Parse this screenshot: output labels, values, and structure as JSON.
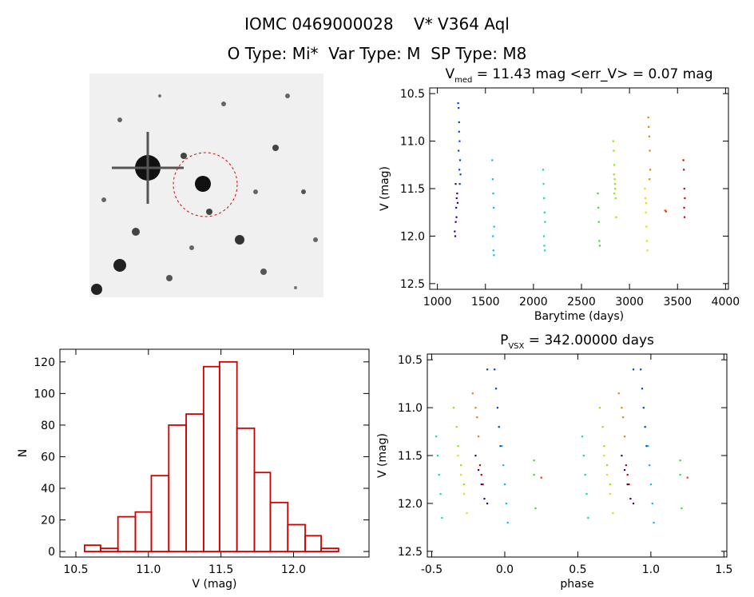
{
  "header": {
    "title": "IOMC 0469000028    V* V364 Aql",
    "subtitle": "O Type: Mi*  Var Type: M  SP Type: M8"
  },
  "chart_data": [
    {
      "type": "scatter",
      "title": "V",
      "title_sub": "med",
      "title_rest": " = 11.43 mag <err_V> = 0.07 mag",
      "xlabel": "Barytime (days)",
      "ylabel": "V (mag)",
      "xlim": [
        920,
        4030
      ],
      "ylim": [
        12.56,
        10.44
      ],
      "xticks": [
        1000,
        1500,
        2000,
        2500,
        3000,
        3500,
        4000
      ],
      "yticks": [
        10.5,
        {
          "value": 11,
          "label": "11.0"
        },
        11.5,
        {
          "value": 12,
          "label": "12.0"
        },
        12.5
      ],
      "series": [
        {
          "color": "#3a0078",
          "x": [
            1180,
            1185,
            1190,
            1195,
            1200,
            1205,
            1190,
            1198,
            1210
          ],
          "values": [
            11.95,
            12.0,
            11.85,
            11.7,
            11.6,
            11.55,
            11.45,
            11.8,
            11.65
          ]
        },
        {
          "color": "#0040d8",
          "x": [
            1215,
            1220,
            1225,
            1230,
            1235,
            1220,
            1228,
            1232,
            1240,
            1225
          ],
          "values": [
            10.6,
            10.65,
            10.8,
            11.0,
            11.2,
            11.1,
            11.3,
            11.45,
            11.35,
            10.9
          ]
        },
        {
          "color": "#00c0f0",
          "x": [
            1570,
            1575,
            1580,
            1585,
            1590,
            1578,
            1582,
            1588
          ],
          "values": [
            11.2,
            11.4,
            11.55,
            11.7,
            11.9,
            12.0,
            12.15,
            12.2
          ]
        },
        {
          "color": "#00e890",
          "x": [
            2100,
            2105,
            2110,
            2115,
            2120,
            2108,
            2112,
            2118
          ],
          "values": [
            11.3,
            11.45,
            11.6,
            11.75,
            11.85,
            12.0,
            12.1,
            12.15
          ]
        },
        {
          "color": "#40d840",
          "x": [
            2670,
            2675,
            2680,
            2685,
            2690
          ],
          "values": [
            11.55,
            11.7,
            11.85,
            12.05,
            12.1
          ]
        },
        {
          "color": "#90e800",
          "x": [
            2830,
            2835,
            2840,
            2845,
            2850,
            2855,
            2860,
            2838,
            2848,
            2842
          ],
          "values": [
            11.0,
            11.1,
            11.25,
            11.4,
            11.5,
            11.6,
            11.8,
            11.35,
            11.45,
            11.55
          ]
        },
        {
          "color": "#e0e000",
          "x": [
            3160,
            3165,
            3170,
            3175,
            3180,
            3185,
            3172
          ],
          "values": [
            11.5,
            11.6,
            11.75,
            11.9,
            12.05,
            12.15,
            11.65
          ]
        },
        {
          "color": "#e88000",
          "x": [
            3195,
            3200,
            3205,
            3210,
            3215,
            3208
          ],
          "values": [
            10.75,
            10.85,
            10.95,
            11.1,
            11.3,
            11.4
          ]
        },
        {
          "color": "#e04000",
          "x": [
            3370,
            3380
          ],
          "values": [
            11.73,
            11.74
          ]
        },
        {
          "color": "#d00000",
          "x": [
            3560,
            3565,
            3570,
            3575,
            3568,
            3572
          ],
          "values": [
            11.2,
            11.3,
            11.5,
            11.6,
            11.7,
            11.8
          ]
        }
      ]
    },
    {
      "type": "histogram",
      "xlabel": "V (mag)",
      "ylabel": "N",
      "color": "#d00000",
      "bins": [
        10.56,
        10.67,
        10.79,
        10.91,
        11.02,
        11.14,
        11.26,
        11.38,
        11.49,
        11.61,
        11.73,
        11.84,
        11.96,
        12.08,
        12.19,
        12.31
      ],
      "values": [
        4,
        2,
        22,
        25,
        48,
        80,
        87,
        117,
        120,
        78,
        50,
        31,
        17,
        10,
        2
      ],
      "xlim": [
        10.39,
        12.52
      ],
      "ylim": [
        -3.5,
        128
      ],
      "xticks": [
        10.5,
        {
          "value": 11,
          "label": "11.0"
        },
        11.5,
        {
          "value": 12,
          "label": "12.0"
        }
      ],
      "yticks": [
        0,
        20,
        40,
        60,
        80,
        100,
        120
      ]
    },
    {
      "type": "scatter",
      "title": "P",
      "title_sub": "VSX",
      "title_rest": " = 342.00000 days",
      "xlabel": "phase",
      "ylabel": "V (mag)",
      "xlim": [
        -0.53,
        1.52
      ],
      "ylim": [
        12.56,
        10.44
      ],
      "xticks": [
        -0.5,
        {
          "value": 0,
          "label": "0.0"
        },
        0.5,
        {
          "value": 1,
          "label": "1.0"
        },
        1.5
      ],
      "yticks": [
        10.5,
        {
          "value": 11,
          "label": "11.0"
        },
        11.5,
        {
          "value": 12,
          "label": "12.0"
        },
        12.5
      ],
      "series": [
        {
          "color": "#3a0078",
          "x": [
            -0.2,
            -0.18,
            -0.16,
            -0.14,
            -0.12,
            0.8,
            0.82,
            0.84,
            0.86,
            0.88
          ],
          "values": [
            11.5,
            11.65,
            11.8,
            11.95,
            12.0,
            11.5,
            11.65,
            11.8,
            11.95,
            12.0
          ]
        },
        {
          "color": "#0040d8",
          "x": [
            -0.07,
            -0.06,
            -0.05,
            -0.04,
            -0.03,
            -0.12,
            0.93,
            0.94,
            0.95,
            0.96,
            0.97,
            0.88
          ],
          "values": [
            10.6,
            10.8,
            11.0,
            11.2,
            11.4,
            10.6,
            10.6,
            10.8,
            11.0,
            11.2,
            11.4,
            10.6
          ]
        },
        {
          "color": "#00c0f0",
          "x": [
            -0.02,
            -0.01,
            0,
            0.01,
            0.02,
            0.98,
            0.99,
            1,
            1.01,
            1.02
          ],
          "values": [
            11.4,
            11.6,
            11.8,
            12.0,
            12.2,
            11.4,
            11.6,
            11.8,
            12.0,
            12.2
          ]
        },
        {
          "color": "#00e890",
          "x": [
            -0.47,
            -0.46,
            -0.45,
            -0.44,
            -0.43,
            0.53,
            0.54,
            0.55,
            0.56,
            0.57
          ],
          "values": [
            11.3,
            11.5,
            11.7,
            11.9,
            12.15,
            11.3,
            11.5,
            11.7,
            11.9,
            12.15
          ]
        },
        {
          "color": "#40d840",
          "x": [
            0.2,
            0.2,
            0.21,
            1.2,
            1.2,
            1.21
          ],
          "values": [
            11.55,
            11.7,
            12.05,
            11.55,
            11.7,
            12.05
          ]
        },
        {
          "color": "#90e800",
          "x": [
            -0.35,
            -0.33,
            -0.32,
            -0.3,
            -0.28,
            0.65,
            0.67,
            0.68,
            0.7,
            0.72
          ],
          "values": [
            11.0,
            11.2,
            11.4,
            11.6,
            11.8,
            11.0,
            11.2,
            11.4,
            11.6,
            11.8
          ]
        },
        {
          "color": "#e0e000",
          "x": [
            -0.32,
            -0.3,
            -0.28,
            -0.26,
            0.68,
            0.7,
            0.72,
            0.74
          ],
          "values": [
            11.5,
            11.7,
            11.9,
            12.1,
            11.5,
            11.7,
            11.9,
            12.1
          ]
        },
        {
          "color": "#e88000",
          "x": [
            -0.22,
            -0.2,
            -0.19,
            -0.18,
            0.78,
            0.8,
            0.81,
            0.82
          ],
          "values": [
            10.85,
            11.0,
            11.1,
            11.3,
            10.85,
            11.0,
            11.1,
            11.3
          ]
        },
        {
          "color": "#e04000",
          "x": [
            0.25,
            1.25
          ],
          "values": [
            11.73,
            11.73
          ]
        },
        {
          "color": "#d00000",
          "x": [
            -0.17,
            -0.16,
            -0.15,
            0.83,
            0.84,
            0.85
          ],
          "values": [
            11.6,
            11.7,
            11.8,
            11.6,
            11.7,
            11.8
          ]
        }
      ]
    }
  ]
}
